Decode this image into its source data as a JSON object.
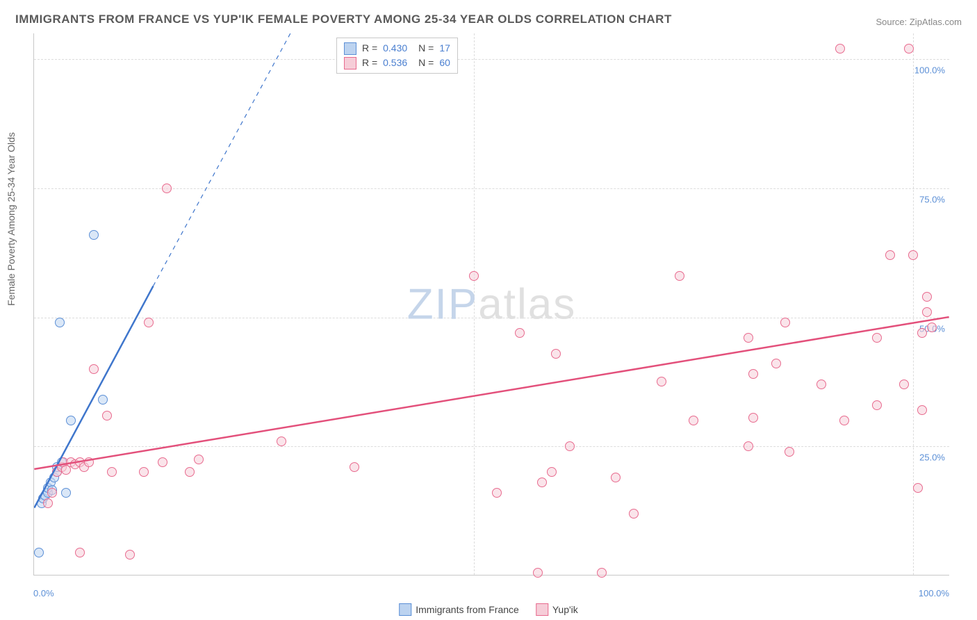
{
  "title": "IMMIGRANTS FROM FRANCE VS YUP'IK FEMALE POVERTY AMONG 25-34 YEAR OLDS CORRELATION CHART",
  "source_label": "Source: ZipAtlas.com",
  "ylabel": "Female Poverty Among 25-34 Year Olds",
  "watermark_zip": "ZIP",
  "watermark_atlas": "atlas",
  "xlim": [
    0,
    100
  ],
  "ylim": [
    0,
    105
  ],
  "xtick_labels": [
    "0.0%",
    "100.0%"
  ],
  "xtick_positions": [
    0,
    100
  ],
  "xtick_minor_positions": [
    0,
    48,
    96
  ],
  "ytick_labels": [
    "25.0%",
    "50.0%",
    "75.0%",
    "100.0%"
  ],
  "ytick_positions": [
    25,
    50,
    75,
    100
  ],
  "legend_top": {
    "rows": [
      {
        "swatch_fill": "#bcd3f0",
        "swatch_border": "#5b8fd6",
        "r_label": "R =",
        "r_value": "0.430",
        "n_label": "N =",
        "n_value": "17"
      },
      {
        "swatch_fill": "#f6cdd8",
        "swatch_border": "#e86a8e",
        "r_label": "R =",
        "r_value": "0.536",
        "n_label": "N =",
        "n_value": "60"
      }
    ]
  },
  "legend_bottom": {
    "items": [
      {
        "swatch_fill": "#bcd3f0",
        "swatch_border": "#5b8fd6",
        "label": "Immigrants from France"
      },
      {
        "swatch_fill": "#f6cdd8",
        "swatch_border": "#e86a8e",
        "label": "Yup'ik"
      }
    ]
  },
  "series": [
    {
      "name": "Immigrants from France",
      "marker_fill": "rgba(188,211,240,0.55)",
      "marker_stroke": "#5b8fd6",
      "marker_radius": 7,
      "trend_color": "#3f76cc",
      "trend_width": 2.5,
      "trend": {
        "x1": 0,
        "y1": 13,
        "x2": 13,
        "y2": 56
      },
      "trend_ext": {
        "x1": 13,
        "y1": 56,
        "x2": 28,
        "y2": 105
      },
      "points": [
        [
          0.5,
          4.5
        ],
        [
          0.8,
          14
        ],
        [
          1.0,
          15
        ],
        [
          1.2,
          15.5
        ],
        [
          1.5,
          16
        ],
        [
          1.5,
          17
        ],
        [
          1.8,
          18
        ],
        [
          2.0,
          16.5
        ],
        [
          2.2,
          19
        ],
        [
          2.5,
          20
        ],
        [
          2.5,
          21
        ],
        [
          3.0,
          22
        ],
        [
          3.5,
          16
        ],
        [
          4.0,
          30
        ],
        [
          6.5,
          66
        ],
        [
          7.5,
          34
        ],
        [
          2.8,
          49
        ]
      ]
    },
    {
      "name": "Yup'ik",
      "marker_fill": "rgba(246,205,216,0.55)",
      "marker_stroke": "#e86a8e",
      "marker_radius": 7,
      "trend_color": "#e3507b",
      "trend_width": 2.5,
      "trend": {
        "x1": 0,
        "y1": 20.5,
        "x2": 100,
        "y2": 50
      },
      "points": [
        [
          1.5,
          14
        ],
        [
          2.0,
          16
        ],
        [
          2.5,
          20
        ],
        [
          3.0,
          21
        ],
        [
          3.2,
          22
        ],
        [
          3.5,
          20.5
        ],
        [
          4.0,
          22
        ],
        [
          4.5,
          21.5
        ],
        [
          5.0,
          22
        ],
        [
          5.5,
          21
        ],
        [
          6.0,
          22
        ],
        [
          6.5,
          40
        ],
        [
          8.0,
          31
        ],
        [
          8.5,
          20
        ],
        [
          5.0,
          4.5
        ],
        [
          10.5,
          4
        ],
        [
          12.0,
          20
        ],
        [
          12.5,
          49
        ],
        [
          14.0,
          22
        ],
        [
          14.5,
          75
        ],
        [
          17.0,
          20
        ],
        [
          18.0,
          22.5
        ],
        [
          27.0,
          26
        ],
        [
          35.0,
          21
        ],
        [
          48.0,
          58
        ],
        [
          53.0,
          47
        ],
        [
          50.5,
          16
        ],
        [
          55.0,
          0.5
        ],
        [
          55.5,
          18
        ],
        [
          57.0,
          43
        ],
        [
          56.5,
          20
        ],
        [
          58.5,
          25
        ],
        [
          62.0,
          0.5
        ],
        [
          63.5,
          19
        ],
        [
          65.5,
          12
        ],
        [
          68.5,
          37.5
        ],
        [
          70.5,
          58
        ],
        [
          72.0,
          30
        ],
        [
          78.0,
          25
        ],
        [
          78.5,
          30.5
        ],
        [
          78.0,
          46
        ],
        [
          78.5,
          39
        ],
        [
          81.0,
          41
        ],
        [
          82.0,
          49
        ],
        [
          82.5,
          24
        ],
        [
          86.0,
          37
        ],
        [
          88.5,
          30
        ],
        [
          88.0,
          102
        ],
        [
          92.0,
          33
        ],
        [
          92.0,
          46
        ],
        [
          93.5,
          62
        ],
        [
          95.0,
          37
        ],
        [
          96.0,
          62
        ],
        [
          96.5,
          17
        ],
        [
          97.0,
          47
        ],
        [
          97.5,
          51
        ],
        [
          97.5,
          54
        ],
        [
          97.0,
          32
        ],
        [
          95.5,
          102
        ],
        [
          98,
          48
        ]
      ]
    }
  ]
}
